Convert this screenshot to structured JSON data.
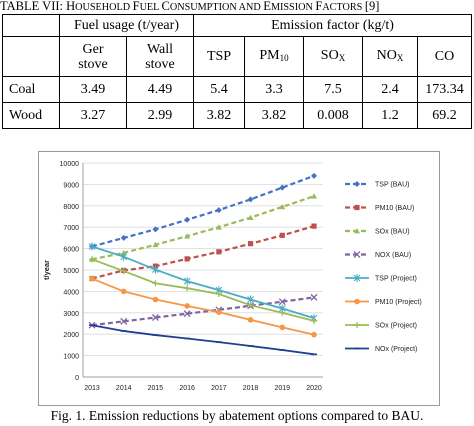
{
  "table": {
    "title_prefix": "TABLE VII: H",
    "title_parts": [
      {
        "cap": "H",
        "rest": "OUSEHOLD "
      },
      {
        "cap": "F",
        "rest": "UEL "
      },
      {
        "cap": "C",
        "rest": "ONSUMPTION AND "
      },
      {
        "cap": "E",
        "rest": "MISSION "
      },
      {
        "cap": "F",
        "rest": "ACTORS "
      }
    ],
    "title_ref": "[9]",
    "group_headers": {
      "fuel_usage": "Fuel usage (t/year)",
      "emission_factor": "Emission factor (kg/t)"
    },
    "sub_headers": {
      "ger": [
        "Ger",
        "stove"
      ],
      "wall": [
        "Wall",
        "stove"
      ],
      "tsp": "TSP",
      "pm": {
        "base": "PM",
        "sub": "10"
      },
      "so": {
        "base": "SO",
        "sub": "X"
      },
      "no": {
        "base": "NO",
        "sub": "X"
      },
      "co": "CO"
    },
    "rows": [
      {
        "label": "Coal",
        "cells": [
          "3.49",
          "4.49",
          "5.4",
          "3.3",
          "7.5",
          "2.4",
          "173.34"
        ]
      },
      {
        "label": "Wood",
        "cells": [
          "3.27",
          "2.99",
          "3.82",
          "3.82",
          "0.008",
          "1.2",
          "69.2"
        ]
      }
    ]
  },
  "chart_data": {
    "type": "line",
    "ylabel": "t/year",
    "xlabel": "",
    "x": [
      2013,
      2014,
      2015,
      2016,
      2017,
      2018,
      2019,
      2020
    ],
    "ylim": [
      0,
      10000
    ],
    "yticks": [
      0,
      1000,
      2000,
      3000,
      4000,
      5000,
      6000,
      7000,
      8000,
      9000,
      10000
    ],
    "grid": true,
    "legend_position": "right",
    "series": [
      {
        "name": "TSP (BAU)",
        "color": "#4472C4",
        "dash": true,
        "marker": "diamond",
        "values": [
          6100,
          6500,
          6900,
          7350,
          7800,
          8300,
          8850,
          9400
        ]
      },
      {
        "name": "PM10 (BAU)",
        "color": "#C0504D",
        "dash": true,
        "marker": "square",
        "values": [
          4600,
          4980,
          5180,
          5520,
          5850,
          6230,
          6620,
          7050
        ]
      },
      {
        "name": "SOx (BAU)",
        "color": "#9BBB59",
        "dash": true,
        "marker": "triangle",
        "values": [
          5500,
          5800,
          6180,
          6580,
          7000,
          7450,
          7950,
          8450
        ]
      },
      {
        "name": "NOX (BAU)",
        "color": "#8064A2",
        "dash": true,
        "marker": "x",
        "values": [
          2420,
          2600,
          2780,
          2960,
          3140,
          3330,
          3520,
          3720
        ]
      },
      {
        "name": "TSP (Project)",
        "color": "#4BACC6",
        "dash": false,
        "marker": "star",
        "values": [
          6100,
          5620,
          5020,
          4480,
          4060,
          3620,
          3200,
          2750
        ]
      },
      {
        "name": "PM10 (Project)",
        "color": "#F79646",
        "dash": false,
        "marker": "circle",
        "values": [
          4600,
          4000,
          3620,
          3320,
          3030,
          2670,
          2320,
          1980
        ]
      },
      {
        "name": "SOx (Project)",
        "color": "#9BBB59",
        "dash": false,
        "marker": "plus",
        "values": [
          5500,
          4950,
          4380,
          4150,
          3880,
          3350,
          3000,
          2620
        ]
      },
      {
        "name": "NOx (Project)",
        "color": "#1F3F94",
        "dash": false,
        "marker": "dash",
        "values": [
          2420,
          2150,
          1960,
          1800,
          1630,
          1450,
          1260,
          1060
        ]
      }
    ]
  },
  "caption": {
    "label": "Fig. 1.",
    "text": "Emission reductions by abatement options compared to BAU."
  }
}
